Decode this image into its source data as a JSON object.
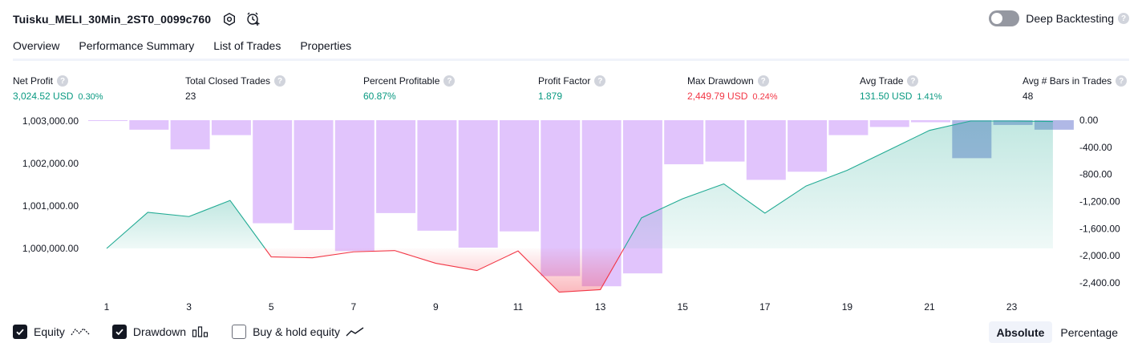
{
  "header": {
    "title": "Tuisku_MELI_30Min_2ST0_0099c760",
    "icons": [
      "settings-icon",
      "add-alert-icon"
    ],
    "deep_backtesting_label": "Deep Backtesting",
    "help_glyph": "?"
  },
  "tabs": [
    {
      "label": "Overview",
      "active": true
    },
    {
      "label": "Performance Summary",
      "active": false
    },
    {
      "label": "List of Trades",
      "active": false
    },
    {
      "label": "Properties",
      "active": false
    }
  ],
  "stats": [
    {
      "label": "Net Profit",
      "value": "3,024.52 USD",
      "pct": "0.30%",
      "color": "#089981"
    },
    {
      "label": "Total Closed Trades",
      "value": "23",
      "pct": "",
      "color": "#131722"
    },
    {
      "label": "Percent Profitable",
      "value": "60.87%",
      "pct": "",
      "color": "#089981"
    },
    {
      "label": "Profit Factor",
      "value": "1.879",
      "pct": "",
      "color": "#089981"
    },
    {
      "label": "Max Drawdown",
      "value": "2,449.79 USD",
      "pct": "0.24%",
      "color": "#f23645"
    },
    {
      "label": "Avg Trade",
      "value": "131.50 USD",
      "pct": "1.41%",
      "color": "#089981"
    },
    {
      "label": "Avg # Bars in Trades",
      "value": "48",
      "pct": "",
      "color": "#131722"
    }
  ],
  "chart_data": {
    "type": "line",
    "left_axis": {
      "ticks": [
        "1,003,000.00",
        "1,002,000.00",
        "1,001,000.00",
        "1,000,000.00"
      ],
      "tick_values": [
        1003000,
        1002000,
        1001000,
        1000000
      ]
    },
    "right_axis": {
      "ticks": [
        "0.00",
        "-400.00",
        "-800.00",
        "-1,200.00",
        "-1,600.00",
        "-2,000.00",
        "-2,400.00"
      ],
      "tick_values": [
        0,
        -400,
        -800,
        -1200,
        -1600,
        -2000,
        -2400
      ]
    },
    "x_ticks": [
      "1",
      "3",
      "5",
      "7",
      "9",
      "11",
      "13",
      "15",
      "17",
      "19",
      "21",
      "23"
    ],
    "x": [
      1,
      2,
      3,
      4,
      5,
      6,
      7,
      8,
      9,
      10,
      11,
      12,
      13,
      14,
      15,
      16,
      17,
      18,
      19,
      20,
      21,
      22,
      23,
      24
    ],
    "equity": [
      1000000,
      1000850,
      1000750,
      1001130,
      999800,
      999780,
      999920,
      999950,
      999650,
      999480,
      999940,
      998970,
      999030,
      1000720,
      1001170,
      1001520,
      1000830,
      1001470,
      1001840,
      1002310,
      1002780,
      1003000,
      1003000,
      1002990
    ],
    "drawdown": [
      0,
      -140,
      -430,
      -220,
      -1520,
      -1620,
      -1930,
      -1370,
      -1630,
      -1880,
      -1640,
      -2300,
      -2449.79,
      -2260,
      -650,
      -610,
      -880,
      -760,
      -220,
      -100,
      -30,
      -560,
      -70,
      -140
    ],
    "drawdown_colors": [
      "#e1c4fc",
      "#e1c4fc",
      "#e1c4fc",
      "#e1c4fc",
      "#e1c4fc",
      "#e1c4fc",
      "#e1c4fc",
      "#e1c4fc",
      "#e1c4fc",
      "#e1c4fc",
      "#e1c4fc",
      "#e1c4fc",
      "#e1c4fc",
      "#e1c4fc",
      "#e1c4fc",
      "#e1c4fc",
      "#e1c4fc",
      "#e1c4fc",
      "#e1c4fc",
      "#e1c4fc",
      "#e1c4fc",
      "#b0b8e6",
      "#b0b8e6",
      "#b0b8e6"
    ],
    "equity_color_up": "#22ab94",
    "equity_color_down": "#f23645",
    "ylim_left": [
      999500,
      1003000
    ],
    "ylim_right": [
      -2500,
      0
    ]
  },
  "legend": [
    {
      "label": "Equity",
      "checked": true,
      "icon": "equity-line-icon"
    },
    {
      "label": "Drawdown",
      "checked": true,
      "icon": "drawdown-bars-icon"
    },
    {
      "label": "Buy & hold equity",
      "checked": false,
      "icon": "buy-hold-line-icon"
    }
  ],
  "modes": [
    {
      "label": "Absolute",
      "active": true
    },
    {
      "label": "Percentage",
      "active": false
    }
  ]
}
